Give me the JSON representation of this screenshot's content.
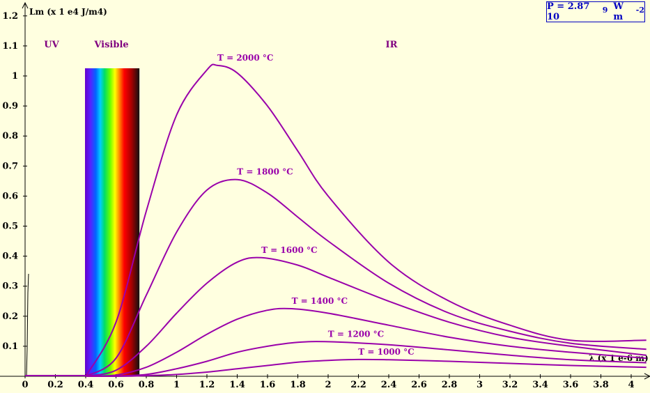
{
  "chart_data": {
    "type": "line",
    "ylabel": "Lm (x 1 e4 J/m4)",
    "xlabel": "λ (x 1 e-6 m)",
    "xlim": [
      0,
      4.1
    ],
    "ylim": [
      0,
      1.2
    ],
    "x_ticks": [
      "0",
      "0.2",
      "0.4",
      "0.6",
      "0.8",
      "1",
      "1.2",
      "1.4",
      "1.6",
      "1.8",
      "2",
      "2.2",
      "2.4",
      "2.6",
      "2.8",
      "3",
      "3.2",
      "3.4",
      "3.6",
      "3.8",
      "4"
    ],
    "y_ticks": [
      "0.1",
      "0.2",
      "0.3",
      "0.4",
      "0.5",
      "0.6",
      "0.7",
      "0.8",
      "0.9",
      "1",
      "1.1",
      "1.2"
    ],
    "regions": {
      "uv": "UV",
      "visible": "Visible",
      "ir": "IR",
      "visible_range": [
        0.4,
        0.75
      ]
    },
    "series": [
      {
        "name": "T = 2000 °C",
        "x": [
          0.4,
          0.6,
          0.8,
          1.0,
          1.2,
          1.27,
          1.4,
          1.6,
          1.8,
          2.0,
          2.4,
          2.8,
          3.2,
          3.6,
          4.1
        ],
        "y": [
          0.0,
          0.18,
          0.55,
          0.87,
          1.02,
          1.035,
          1.01,
          0.9,
          0.75,
          0.6,
          0.38,
          0.25,
          0.17,
          0.12,
          0.12
        ]
      },
      {
        "name": "T = 1800 °C",
        "x": [
          0.4,
          0.6,
          0.8,
          1.0,
          1.2,
          1.4,
          1.6,
          1.8,
          2.0,
          2.4,
          2.8,
          3.2,
          3.6,
          4.1
        ],
        "y": [
          0.0,
          0.06,
          0.27,
          0.48,
          0.62,
          0.655,
          0.61,
          0.53,
          0.45,
          0.31,
          0.21,
          0.15,
          0.11,
          0.09
        ]
      },
      {
        "name": "T = 1600 °C",
        "x": [
          0.4,
          0.6,
          0.8,
          1.0,
          1.2,
          1.4,
          1.56,
          1.8,
          2.0,
          2.4,
          2.8,
          3.2,
          3.6,
          4.1
        ],
        "y": [
          0.0,
          0.02,
          0.1,
          0.21,
          0.31,
          0.38,
          0.395,
          0.37,
          0.33,
          0.25,
          0.18,
          0.13,
          0.1,
          0.07
        ]
      },
      {
        "name": "T = 1400 °C",
        "x": [
          0.4,
          0.6,
          0.8,
          1.0,
          1.2,
          1.4,
          1.6,
          1.76,
          2.0,
          2.4,
          2.8,
          3.2,
          3.6,
          4.1
        ],
        "y": [
          0.0,
          0.004,
          0.03,
          0.08,
          0.14,
          0.19,
          0.22,
          0.225,
          0.21,
          0.17,
          0.13,
          0.1,
          0.08,
          0.06
        ]
      },
      {
        "name": "T = 1200 °C",
        "x": [
          0.4,
          0.6,
          0.8,
          1.0,
          1.2,
          1.4,
          1.6,
          1.8,
          2.0,
          2.4,
          2.8,
          3.2,
          3.6,
          4.1
        ],
        "y": [
          0.0,
          0.001,
          0.006,
          0.025,
          0.05,
          0.08,
          0.1,
          0.113,
          0.115,
          0.105,
          0.088,
          0.07,
          0.055,
          0.045
        ]
      },
      {
        "name": "T = 1000 °C",
        "x": [
          0.4,
          0.6,
          0.8,
          1.0,
          1.2,
          1.4,
          1.6,
          1.8,
          2.0,
          2.2,
          2.4,
          2.8,
          3.2,
          3.6,
          4.1
        ],
        "y": [
          0.0,
          0.0,
          0.002,
          0.006,
          0.014,
          0.025,
          0.036,
          0.047,
          0.053,
          0.056,
          0.055,
          0.05,
          0.043,
          0.036,
          0.03
        ]
      }
    ],
    "line_color": "#9900aa",
    "grid": false
  },
  "power_box": {
    "prefix": "P = 2.87 10",
    "exponent": "9",
    "unit": "W m",
    "unit_exponent": "-2"
  }
}
